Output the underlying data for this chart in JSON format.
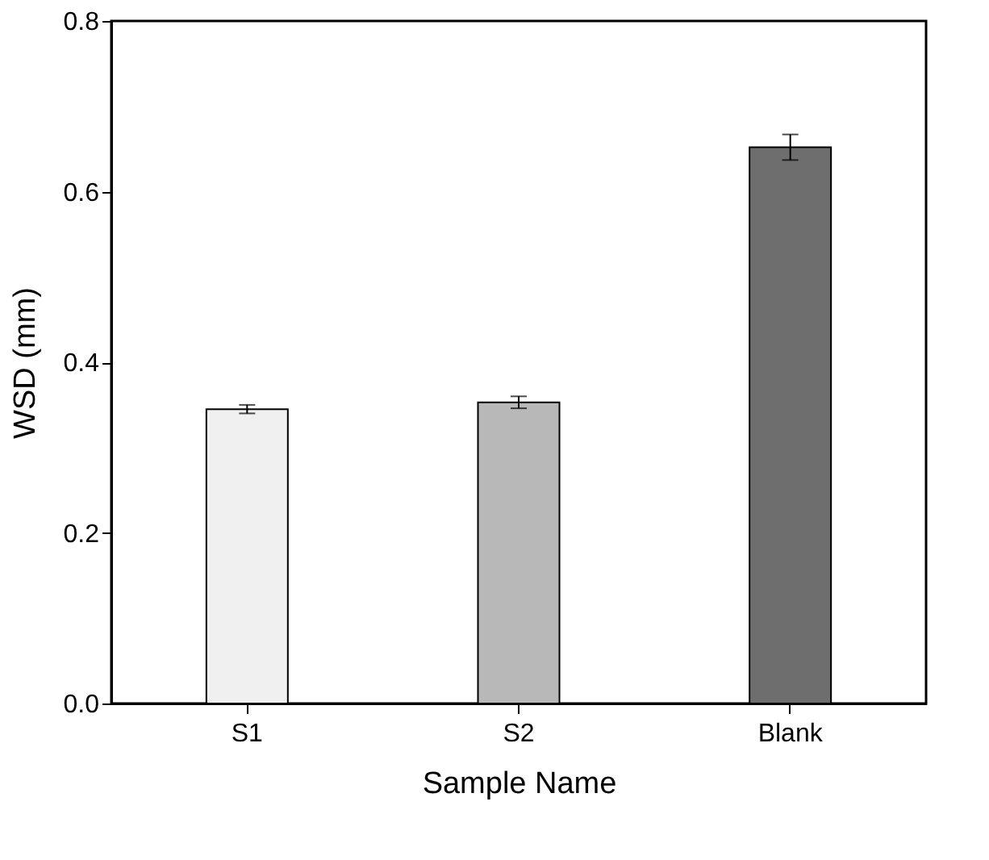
{
  "chart_data": {
    "type": "bar",
    "xlabel": "Sample Name",
    "ylabel": "WSD (mm)",
    "categories": [
      "S1",
      "S2",
      "Blank"
    ],
    "values": [
      0.345,
      0.353,
      0.652
    ],
    "errors": [
      0.005,
      0.007,
      0.015
    ],
    "colors": [
      "#f0f0f0",
      "#b8b8b8",
      "#6e6e6e"
    ],
    "ylim": [
      0,
      0.8
    ],
    "yticks": [
      {
        "value": 0,
        "label": "0.0"
      },
      0.2,
      0.4,
      0.6,
      0.8
    ],
    "grid": false
  }
}
